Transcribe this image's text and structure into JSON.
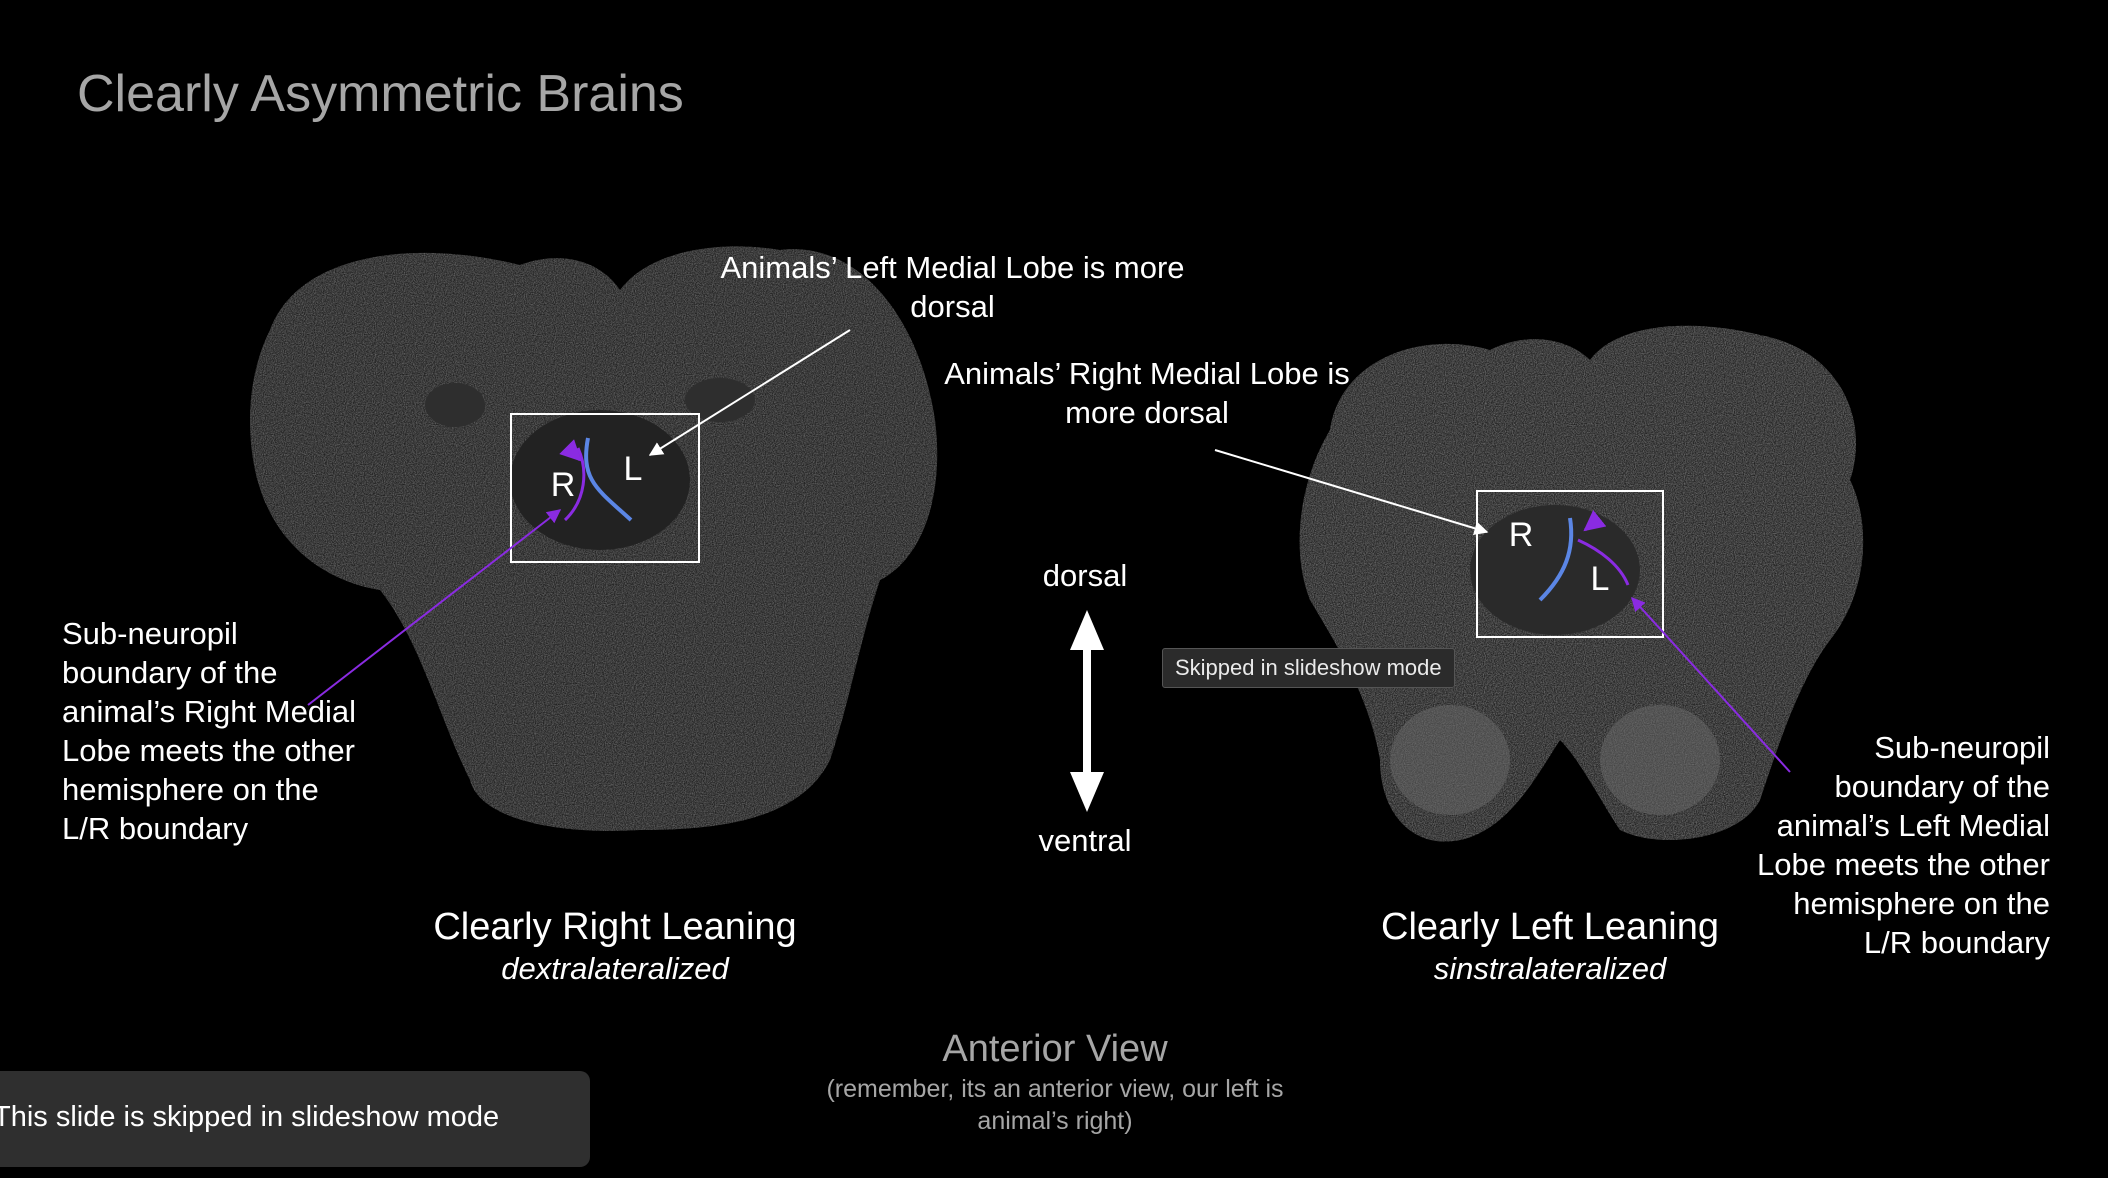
{
  "slide": {
    "title": "Clearly Asymmetric Brains",
    "annotations": {
      "left_dorsal": "Animals’ Left Medial Lobe is more dorsal",
      "right_dorsal": "Animals’ Right Medial Lobe is more dorsal",
      "left_boundary": "Sub-neuropil boundary of the animal’s Right Medial Lobe meets the other hemisphere on the L/R boundary",
      "right_boundary": "Sub-neuropil boundary of the animal’s Left Medial Lobe meets the other hemisphere on the L/R boundary"
    },
    "left_image": {
      "label_r": "R",
      "label_l": "L"
    },
    "right_image": {
      "label_r": "R",
      "label_l": "L"
    },
    "captions": {
      "left_main": "Clearly Right Leaning",
      "left_sub": "dextralateralized",
      "right_main": "Clearly Left Leaning",
      "right_sub": "sinstralateralized"
    },
    "axis": {
      "dorsal": "dorsal",
      "ventral": "ventral"
    },
    "view": {
      "title": "Anterior View",
      "note": "(remember, its an anterior view, our left is animal’s right)"
    }
  },
  "tooltip": {
    "text": "Skipped in slideshow mode"
  },
  "banner": {
    "text": "This slide is skipped in slideshow mode"
  },
  "colors": {
    "background": "#000000",
    "title_gray": "#a6a6a6",
    "blue_boundary": "#5b86e5",
    "purple_boundary": "#8a2be2"
  }
}
